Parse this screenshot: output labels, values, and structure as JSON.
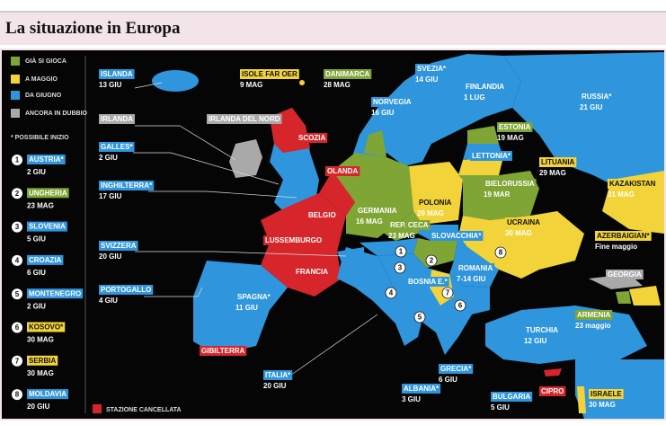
{
  "header": {
    "title": "La situazione in Europa"
  },
  "legend": {
    "statuses": [
      {
        "name": "GIÀ SI GIOCA",
        "color": "#7fa535"
      },
      {
        "name": "A MAGGIO",
        "color": "#f2d43a"
      },
      {
        "name": "DA GIUGNO",
        "color": "#2f95dc"
      },
      {
        "name": "ANCORA IN DUBBIO",
        "color": "#a9a9a9"
      }
    ],
    "note": "* POSSIBILE INIZIO",
    "cancelled": {
      "name": "STAZIONE CANCELLATA",
      "color": "#d6262b"
    }
  },
  "numbered": [
    {
      "number": "1",
      "name": "AUSTRIA*",
      "date": "2 GIU",
      "color": "#2f95dc"
    },
    {
      "number": "2",
      "name": "UNGHERIA",
      "date": "23 MAG",
      "color": "#7fa535"
    },
    {
      "number": "3",
      "name": "SLOVENIA",
      "date": "5 GIU",
      "color": "#2f95dc"
    },
    {
      "number": "4",
      "name": "CROAZIA",
      "date": "6 GIU",
      "color": "#2f95dc"
    },
    {
      "number": "5",
      "name": "MONTENEGRO",
      "date": "2 GIU",
      "color": "#2f95dc"
    },
    {
      "number": "6",
      "name": "KOSOVO*",
      "date": "30 MAG",
      "color": "#f2d43a"
    },
    {
      "number": "7",
      "name": "SERBIA",
      "date": "30 MAG",
      "color": "#f2d43a"
    },
    {
      "number": "8",
      "name": "MOLDAVIA",
      "date": "20 GIU",
      "color": "#2f95dc"
    }
  ],
  "labels": [
    {
      "name": "ISLANDA",
      "date": "13 GIU",
      "color": "#2f95dc"
    },
    {
      "name": "ISOLE FAR OER",
      "date": "9 MAG",
      "color": "#f2d43a"
    },
    {
      "name": "DANIMARCA",
      "date": "28 MAG",
      "color": "#7fa535"
    },
    {
      "name": "SVEZIA*",
      "date": "14 GIU",
      "color": "#2f95dc"
    },
    {
      "name": "FINLANDIA",
      "date": "1 LUG",
      "color": "#2f95dc"
    },
    {
      "name": "RUSSIA*",
      "date": "21 GIU",
      "color": "#2f95dc"
    },
    {
      "name": "NORVEGIA",
      "date": "16 GIU",
      "color": "#2f95dc"
    },
    {
      "name": "IRLANDA",
      "color": "#a9a9a9"
    },
    {
      "name": "IRLANDA DEL NORD",
      "color": "#a9a9a9"
    },
    {
      "name": "SCOZIA",
      "color": "#d6262b"
    },
    {
      "name": "ESTONIA",
      "date": "19 MAG",
      "color": "#7fa535"
    },
    {
      "name": "LETTONIA*",
      "color": "#2f95dc"
    },
    {
      "name": "GALLES*",
      "date": "2 GIU",
      "color": "#2f95dc"
    },
    {
      "name": "OLANDA",
      "color": "#d6262b"
    },
    {
      "name": "LITUANIA",
      "date": "29 MAG",
      "color": "#f2d43a"
    },
    {
      "name": "BIELORUSSIA",
      "date": "19 MAR",
      "color": "#7fa535"
    },
    {
      "name": "KAZAKISTAN",
      "date": "31 MAG",
      "color": "#f2d43a"
    },
    {
      "name": "INGHILTERRA*",
      "date": "17 GIU",
      "color": "#2f95dc"
    },
    {
      "name": "BELGIO",
      "color": "#d6262b"
    },
    {
      "name": "GERMANIA",
      "date": "16 MAG",
      "color": "#7fa535"
    },
    {
      "name": "POLONIA",
      "date": "29 MAG",
      "color": "#f2d43a"
    },
    {
      "name": "UCRAINA",
      "date": "30 MAG",
      "color": "#f2d43a"
    },
    {
      "name": "REP. CECA",
      "date": "23 MAG",
      "color": "#7fa535"
    },
    {
      "name": "LUSSEMBURGO",
      "color": "#d6262b"
    },
    {
      "name": "SLOVACCHIA*",
      "color": "#2f95dc"
    },
    {
      "name": "AZERBAIGIAN*",
      "date": "Fine maggio",
      "color": "#f2d43a"
    },
    {
      "name": "SVIZZERA",
      "date": "20 GIU",
      "color": "#2f95dc"
    },
    {
      "name": "FRANCIA",
      "color": "#d6262b"
    },
    {
      "name": "ROMANIA",
      "date": "7-14 GIU",
      "color": "#2f95dc"
    },
    {
      "name": "GEORGIA",
      "color": "#a9a9a9"
    },
    {
      "name": "PORTOGALLO",
      "date": "4 GIU",
      "color": "#2f95dc"
    },
    {
      "name": "BOSNIA E.*",
      "color": "#2f95dc"
    },
    {
      "name": "SPAGNA*",
      "date": "11 GIU",
      "color": "#2f95dc"
    },
    {
      "name": "ARMENIA",
      "date": "23 maggio",
      "color": "#7fa535"
    },
    {
      "name": "TURCHIA",
      "date": "12 GIU",
      "color": "#2f95dc"
    },
    {
      "name": "GIBILTERRA",
      "color": "#d6262b"
    },
    {
      "name": "ITALIA*",
      "date": "20 GIU",
      "color": "#2f95dc"
    },
    {
      "name": "ALBANIA*",
      "date": "3 GIU",
      "color": "#2f95dc"
    },
    {
      "name": "GRECIA*",
      "date": "6 GIU",
      "color": "#2f95dc"
    },
    {
      "name": "BULGARIA",
      "date": "5 GIU",
      "color": "#2f95dc"
    },
    {
      "name": "CIPRO",
      "color": "#d6262b"
    },
    {
      "name": "ISRAELE",
      "date": "30 MAG",
      "color": "#f2d43a"
    }
  ]
}
